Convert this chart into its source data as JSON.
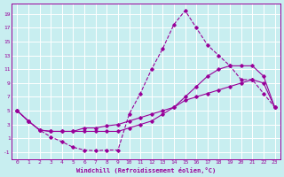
{
  "xlabel": "Windchill (Refroidissement éolien,°C)",
  "bg_color": "#c8eef0",
  "grid_color": "#ffffff",
  "line_color": "#990099",
  "xlim": [
    -0.5,
    23.5
  ],
  "ylim": [
    -2,
    20.5
  ],
  "xticks": [
    0,
    1,
    2,
    3,
    4,
    5,
    6,
    7,
    8,
    9,
    10,
    11,
    12,
    13,
    14,
    15,
    16,
    17,
    18,
    19,
    20,
    21,
    22,
    23
  ],
  "yticks": [
    -1,
    1,
    3,
    5,
    7,
    9,
    11,
    13,
    15,
    17,
    19
  ],
  "line1_x": [
    0,
    1,
    2,
    3,
    4,
    5,
    6,
    7,
    8,
    9,
    10,
    11,
    12,
    13,
    14,
    15,
    16,
    17,
    18,
    19,
    20,
    21,
    22,
    23
  ],
  "line1_y": [
    5.0,
    3.5,
    2.2,
    1.2,
    0.5,
    -0.3,
    -0.7,
    -0.8,
    -0.7,
    -0.7,
    4.5,
    7.5,
    11.0,
    14.0,
    17.5,
    19.5,
    17.0,
    14.5,
    13.0,
    11.5,
    9.5,
    9.5,
    7.5,
    5.5
  ],
  "line2_x": [
    0,
    1,
    2,
    3,
    4,
    5,
    6,
    7,
    8,
    9,
    10,
    11,
    12,
    13,
    14,
    15,
    16,
    17,
    18,
    19,
    20,
    21,
    22,
    23
  ],
  "line2_y": [
    5.0,
    3.5,
    2.2,
    2.0,
    2.0,
    2.0,
    2.5,
    2.5,
    2.8,
    3.0,
    3.5,
    4.0,
    4.5,
    5.0,
    5.5,
    6.5,
    7.0,
    7.5,
    8.0,
    8.5,
    9.0,
    9.5,
    9.0,
    5.5
  ],
  "line3_x": [
    0,
    1,
    2,
    3,
    4,
    5,
    6,
    7,
    8,
    9,
    10,
    11,
    12,
    13,
    14,
    15,
    16,
    17,
    18,
    19,
    20,
    21,
    22,
    23
  ],
  "line3_y": [
    5.0,
    3.5,
    2.2,
    2.0,
    2.0,
    2.0,
    2.0,
    2.0,
    2.0,
    2.0,
    2.5,
    3.0,
    3.5,
    4.5,
    5.5,
    7.0,
    8.5,
    10.0,
    11.0,
    11.5,
    11.5,
    11.5,
    10.0,
    5.5
  ]
}
